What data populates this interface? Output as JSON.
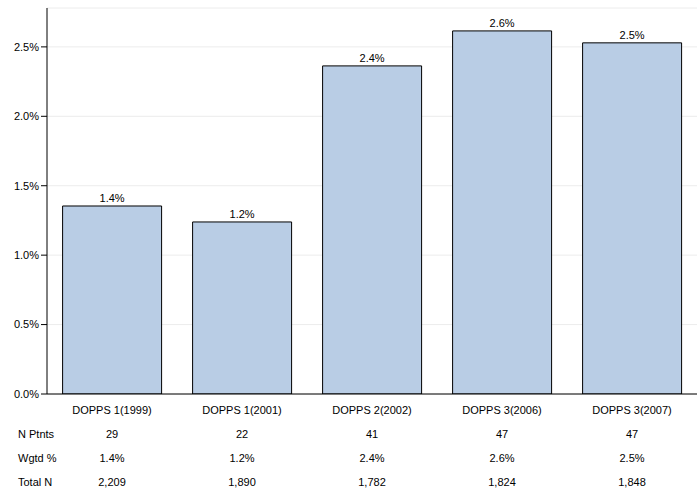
{
  "chart_data": {
    "type": "bar",
    "categories": [
      "DOPPS 1(1999)",
      "DOPPS 1(2001)",
      "DOPPS 2(2002)",
      "DOPPS 3(2006)",
      "DOPPS 3(2007)"
    ],
    "values": [
      1.354,
      1.239,
      2.363,
      2.615,
      2.529
    ],
    "value_labels": [
      "1.4%",
      "1.2%",
      "2.4%",
      "2.6%",
      "2.5%"
    ],
    "data_labels": true,
    "color": "#b9cde5",
    "ylim": [
      0,
      2.78
    ],
    "yticks": [
      {
        "value": 0,
        "label": "0.0%"
      },
      {
        "value": 0.5,
        "label": "0.5%"
      },
      {
        "value": 1,
        "label": "1.0%"
      },
      {
        "value": 1.5,
        "label": "1.5%"
      },
      {
        "value": 2,
        "label": "2.0%"
      },
      {
        "value": 2.5,
        "label": "2.5%"
      }
    ],
    "grid": true
  },
  "table": {
    "rows": [
      {
        "label": "N Ptnts",
        "values": [
          "29",
          "22",
          "41",
          "47",
          "47"
        ]
      },
      {
        "label": "Wgtd %",
        "values": [
          "1.4%",
          "1.2%",
          "2.4%",
          "2.6%",
          "2.5%"
        ]
      },
      {
        "label": "Total N",
        "values": [
          "2,209",
          "1,890",
          "1,782",
          "1,824",
          "1,848"
        ]
      }
    ]
  }
}
